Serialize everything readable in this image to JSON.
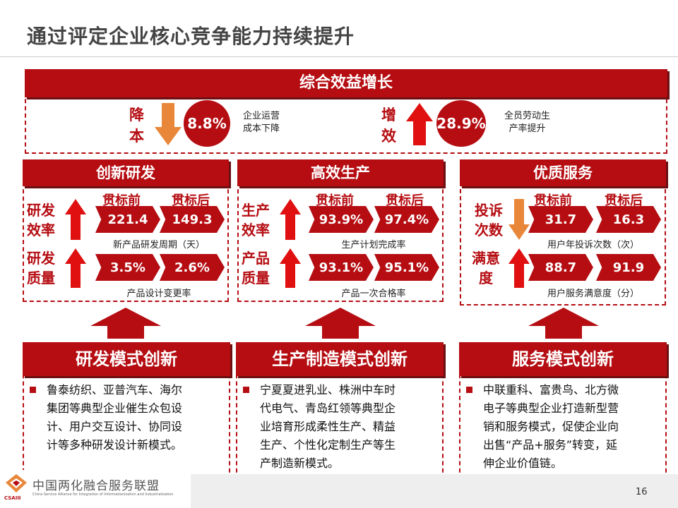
{
  "page_title": "通过评定企业核心竞争能力持续提升",
  "top": {
    "header": "综合效益增长",
    "left": {
      "label": "降本",
      "value": "8.8%",
      "desc_line1": "企业运营",
      "desc_line2": "成本下降"
    },
    "right": {
      "label": "增效",
      "value": "28.9%",
      "desc_line1": "全员劳动生",
      "desc_line2": "产率提升"
    }
  },
  "columns": {
    "before": "贯标前",
    "after": "贯标后"
  },
  "panels": [
    {
      "header": "创新研发",
      "rows": [
        {
          "label1": "研发",
          "label2": "效率",
          "before": "221.4",
          "after": "149.3",
          "caption": "新产品研发周期（天）",
          "trend": "up"
        },
        {
          "label1": "研发",
          "label2": "质量",
          "before": "3.5%",
          "after": "2.6%",
          "caption": "产品设计变更率",
          "trend": "up"
        }
      ]
    },
    {
      "header": "高效生产",
      "rows": [
        {
          "label1": "生产",
          "label2": "效率",
          "before": "93.9%",
          "after": "97.4%",
          "caption": "生产计划完成率",
          "trend": "up"
        },
        {
          "label1": "产品",
          "label2": "质量",
          "before": "93.1%",
          "after": "95.1%",
          "caption": "产品一次合格率",
          "trend": "up"
        }
      ]
    },
    {
      "header": "优质服务",
      "rows": [
        {
          "label1": "投诉",
          "label2": "次数",
          "before": "31.7",
          "after": "16.3",
          "caption": "用户年投诉次数（次）",
          "trend": "down"
        },
        {
          "label1": "满意",
          "label2": "度",
          "before": "88.7",
          "after": "91.9",
          "caption": "用户服务满意度（分）",
          "trend": "up"
        }
      ]
    }
  ],
  "bottom": [
    {
      "header": "研发模式创新",
      "text": [
        "鲁泰纺织、亚普汽车、海尔",
        "集团等典型企业催生众包设",
        "计、用户交互设计、协同设",
        "计等多种研发设计新模式。"
      ]
    },
    {
      "header": "生产制造模式创新",
      "text": [
        "宁夏夏进乳业、株洲中车时",
        "代电气、青岛红领等典型企",
        "业培育形成柔性生产、精益",
        "生产、个性化定制生产等生",
        "产制造新模式。"
      ]
    },
    {
      "header": "服务模式创新",
      "text": [
        "中联重科、富贵鸟、北方微",
        "电子等典型企业打造新型营",
        "销和服务模式，促使企业向",
        "出售“产品+服务”转变，延",
        "伸企业价值链。"
      ]
    }
  ],
  "footer": {
    "logo_name": "中国两化融合服务联盟",
    "logo_en": "China Service Alliance for Integration of Informationization and Industrialization",
    "logo_abbr": "CSAIII",
    "page_number": "16"
  },
  "colors": {
    "accent": "#b50d12",
    "orange": "#e8873a"
  }
}
